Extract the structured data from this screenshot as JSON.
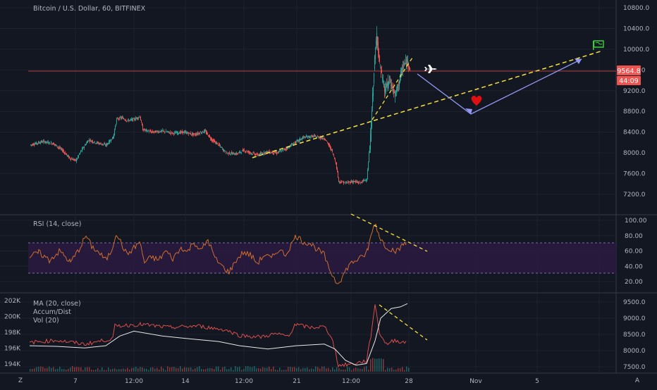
{
  "main_pane": {
    "title": "Bitcoin / U.S. Dollar, 60, BITFINEX",
    "price_ticks": [
      "10800.0",
      "10400.0",
      "10000.0",
      "9600.0",
      "9200.0",
      "8800.0",
      "8400.0",
      "8000.0",
      "7600.0",
      "7200.0"
    ],
    "price_values": [
      10800,
      10400,
      10000,
      9600,
      9200,
      8800,
      8400,
      8000,
      7600,
      7200
    ],
    "last_price": "9564.8",
    "countdown": "44:09",
    "icons": [
      "airplane-icon",
      "heart-icon",
      "flag-icon"
    ]
  },
  "rsi_pane": {
    "title": "RSI (14, close)",
    "ticks": [
      "100.00",
      "80.00",
      "60.00",
      "40.00",
      "20.00"
    ],
    "tick_values": [
      100,
      80,
      60,
      40,
      20
    ]
  },
  "volume_pane": {
    "title_ma": "MA (20, close)",
    "title_ad": "Accum/Dist",
    "title_vol": "Vol (20)",
    "left_ticks": [
      "202K",
      "200K",
      "198K",
      "196K",
      "194K"
    ],
    "left_values": [
      202,
      200,
      198,
      196,
      194
    ],
    "right_ticks": [
      "9500.0",
      "9000.0",
      "8500.0",
      "8000.0",
      "7500.0"
    ],
    "right_values": [
      9500,
      9000,
      8500,
      8000,
      7500
    ]
  },
  "time_axis": {
    "labels": [
      "7",
      "12:00",
      "14",
      "12:00",
      "21",
      "12:00",
      "28",
      "Nov",
      "5"
    ]
  },
  "controls": {
    "left_button": "Z",
    "right_button": "A"
  },
  "colors": {
    "background": "#131722",
    "up_candle": "#26a69a",
    "down_candle": "#ef5350",
    "price_label": "#ef5350",
    "trend_line": "#f7e23b",
    "arrow": "#9598f5",
    "rsi_line": "#e0762c",
    "rsi_band": "#2a1a40",
    "ma_line": "#e8e8e8",
    "ad_line": "#ef5350",
    "flag": "#3ad23a"
  }
}
